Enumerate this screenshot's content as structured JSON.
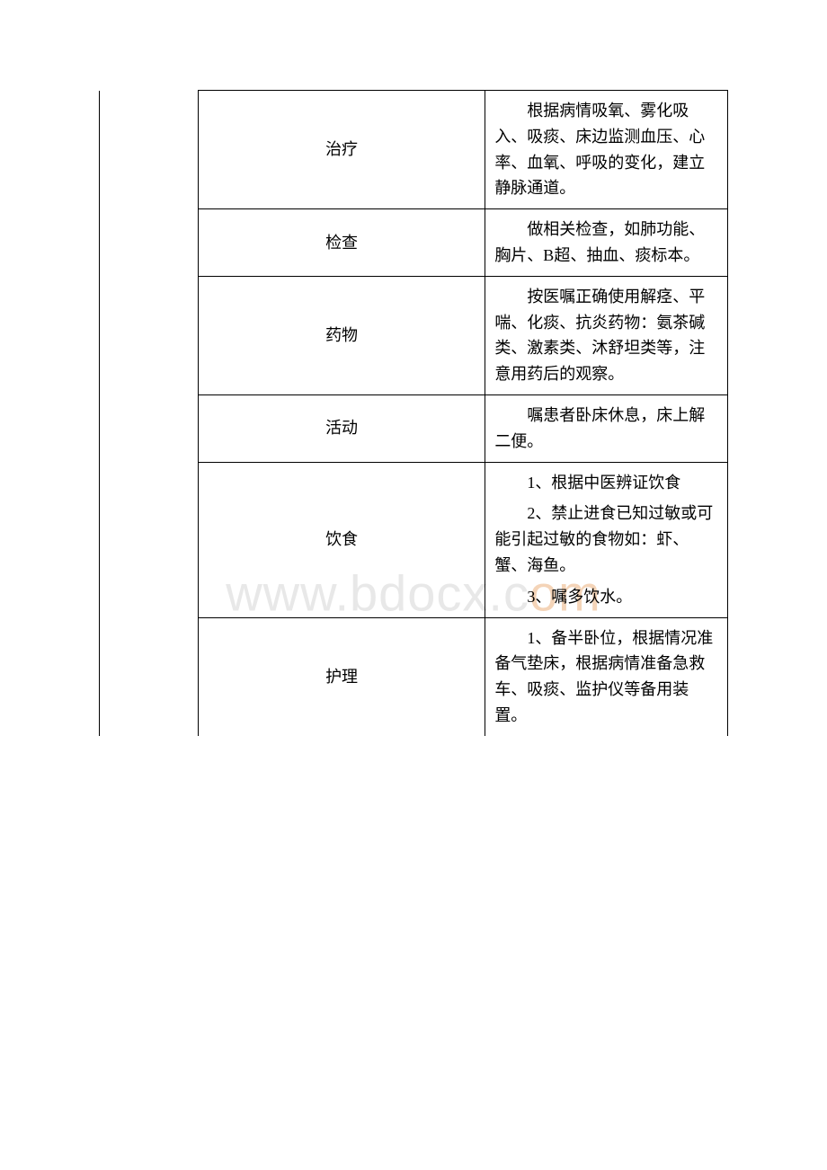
{
  "watermark": {
    "prefix": "www.bdocx.c",
    "suffix": "om",
    "prefix_color": "#e8e8e8",
    "suffix_color": "#f4d4b8",
    "fontsize": 56
  },
  "table": {
    "border_color": "#000000",
    "font_color": "#000000",
    "font_size": 18,
    "rows": [
      {
        "category": "治疗",
        "content": [
          "根据病情吸氧、雾化吸入、吸痰、床边监测血压、心率、血氧、呼吸的变化，建立静脉通道。"
        ]
      },
      {
        "category": "检查",
        "content": [
          "做相关检查，如肺功能、胸片、B超、抽血、痰标本。"
        ]
      },
      {
        "category": "药物",
        "content": [
          "按医嘱正确使用解痉、平喘、化痰、抗炎药物：氨茶碱类、激素类、沐舒坦类等，注意用药后的观察。"
        ]
      },
      {
        "category": "活动",
        "content": [
          "嘱患者卧床休息，床上解二便。"
        ]
      },
      {
        "category": "饮食",
        "content": [
          "1、根据中医辨证饮食",
          "2、禁止进食已知过敏或可能引起过敏的食物如：虾、蟹、海鱼。",
          "3、嘱多饮水。"
        ]
      },
      {
        "category": "护理",
        "content": [
          "1、备半卧位，根据情况准备气垫床，根据病情准备急救车、吸痰、监护仪等备用装置。"
        ]
      }
    ]
  }
}
